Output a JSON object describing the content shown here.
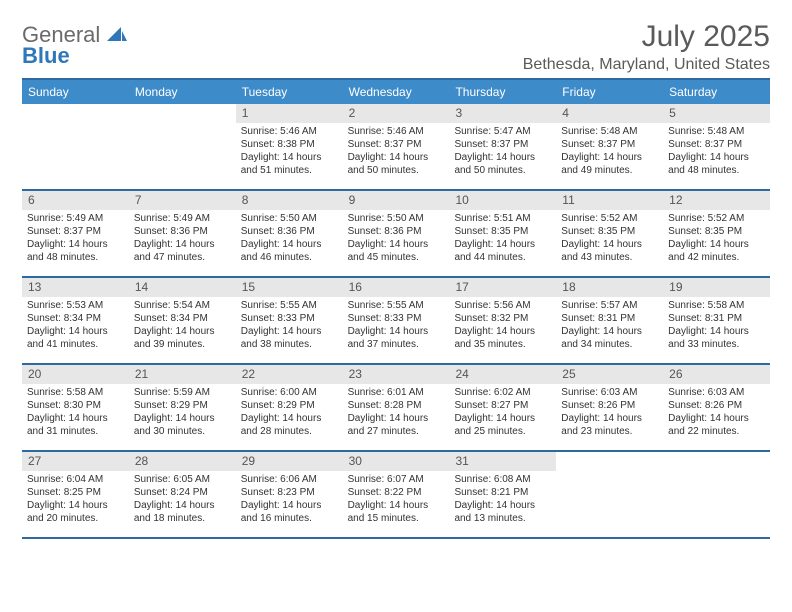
{
  "logo": {
    "line1": "General",
    "line2": "Blue",
    "brand_color": "#2e77b8",
    "gray_color": "#6a6a6a"
  },
  "header": {
    "month_title": "July 2025",
    "location": "Bethesda, Maryland, United States"
  },
  "colors": {
    "header_bg": "#3d8bc9",
    "header_border": "#2e6aa0",
    "daynum_bg": "#e7e7e7",
    "text": "#333333"
  },
  "day_names": [
    "Sunday",
    "Monday",
    "Tuesday",
    "Wednesday",
    "Thursday",
    "Friday",
    "Saturday"
  ],
  "weeks": [
    [
      {
        "num": "",
        "sunrise": "",
        "sunset": "",
        "daylight": ""
      },
      {
        "num": "",
        "sunrise": "",
        "sunset": "",
        "daylight": ""
      },
      {
        "num": "1",
        "sunrise": "Sunrise: 5:46 AM",
        "sunset": "Sunset: 8:38 PM",
        "daylight": "Daylight: 14 hours and 51 minutes."
      },
      {
        "num": "2",
        "sunrise": "Sunrise: 5:46 AM",
        "sunset": "Sunset: 8:37 PM",
        "daylight": "Daylight: 14 hours and 50 minutes."
      },
      {
        "num": "3",
        "sunrise": "Sunrise: 5:47 AM",
        "sunset": "Sunset: 8:37 PM",
        "daylight": "Daylight: 14 hours and 50 minutes."
      },
      {
        "num": "4",
        "sunrise": "Sunrise: 5:48 AM",
        "sunset": "Sunset: 8:37 PM",
        "daylight": "Daylight: 14 hours and 49 minutes."
      },
      {
        "num": "5",
        "sunrise": "Sunrise: 5:48 AM",
        "sunset": "Sunset: 8:37 PM",
        "daylight": "Daylight: 14 hours and 48 minutes."
      }
    ],
    [
      {
        "num": "6",
        "sunrise": "Sunrise: 5:49 AM",
        "sunset": "Sunset: 8:37 PM",
        "daylight": "Daylight: 14 hours and 48 minutes."
      },
      {
        "num": "7",
        "sunrise": "Sunrise: 5:49 AM",
        "sunset": "Sunset: 8:36 PM",
        "daylight": "Daylight: 14 hours and 47 minutes."
      },
      {
        "num": "8",
        "sunrise": "Sunrise: 5:50 AM",
        "sunset": "Sunset: 8:36 PM",
        "daylight": "Daylight: 14 hours and 46 minutes."
      },
      {
        "num": "9",
        "sunrise": "Sunrise: 5:50 AM",
        "sunset": "Sunset: 8:36 PM",
        "daylight": "Daylight: 14 hours and 45 minutes."
      },
      {
        "num": "10",
        "sunrise": "Sunrise: 5:51 AM",
        "sunset": "Sunset: 8:35 PM",
        "daylight": "Daylight: 14 hours and 44 minutes."
      },
      {
        "num": "11",
        "sunrise": "Sunrise: 5:52 AM",
        "sunset": "Sunset: 8:35 PM",
        "daylight": "Daylight: 14 hours and 43 minutes."
      },
      {
        "num": "12",
        "sunrise": "Sunrise: 5:52 AM",
        "sunset": "Sunset: 8:35 PM",
        "daylight": "Daylight: 14 hours and 42 minutes."
      }
    ],
    [
      {
        "num": "13",
        "sunrise": "Sunrise: 5:53 AM",
        "sunset": "Sunset: 8:34 PM",
        "daylight": "Daylight: 14 hours and 41 minutes."
      },
      {
        "num": "14",
        "sunrise": "Sunrise: 5:54 AM",
        "sunset": "Sunset: 8:34 PM",
        "daylight": "Daylight: 14 hours and 39 minutes."
      },
      {
        "num": "15",
        "sunrise": "Sunrise: 5:55 AM",
        "sunset": "Sunset: 8:33 PM",
        "daylight": "Daylight: 14 hours and 38 minutes."
      },
      {
        "num": "16",
        "sunrise": "Sunrise: 5:55 AM",
        "sunset": "Sunset: 8:33 PM",
        "daylight": "Daylight: 14 hours and 37 minutes."
      },
      {
        "num": "17",
        "sunrise": "Sunrise: 5:56 AM",
        "sunset": "Sunset: 8:32 PM",
        "daylight": "Daylight: 14 hours and 35 minutes."
      },
      {
        "num": "18",
        "sunrise": "Sunrise: 5:57 AM",
        "sunset": "Sunset: 8:31 PM",
        "daylight": "Daylight: 14 hours and 34 minutes."
      },
      {
        "num": "19",
        "sunrise": "Sunrise: 5:58 AM",
        "sunset": "Sunset: 8:31 PM",
        "daylight": "Daylight: 14 hours and 33 minutes."
      }
    ],
    [
      {
        "num": "20",
        "sunrise": "Sunrise: 5:58 AM",
        "sunset": "Sunset: 8:30 PM",
        "daylight": "Daylight: 14 hours and 31 minutes."
      },
      {
        "num": "21",
        "sunrise": "Sunrise: 5:59 AM",
        "sunset": "Sunset: 8:29 PM",
        "daylight": "Daylight: 14 hours and 30 minutes."
      },
      {
        "num": "22",
        "sunrise": "Sunrise: 6:00 AM",
        "sunset": "Sunset: 8:29 PM",
        "daylight": "Daylight: 14 hours and 28 minutes."
      },
      {
        "num": "23",
        "sunrise": "Sunrise: 6:01 AM",
        "sunset": "Sunset: 8:28 PM",
        "daylight": "Daylight: 14 hours and 27 minutes."
      },
      {
        "num": "24",
        "sunrise": "Sunrise: 6:02 AM",
        "sunset": "Sunset: 8:27 PM",
        "daylight": "Daylight: 14 hours and 25 minutes."
      },
      {
        "num": "25",
        "sunrise": "Sunrise: 6:03 AM",
        "sunset": "Sunset: 8:26 PM",
        "daylight": "Daylight: 14 hours and 23 minutes."
      },
      {
        "num": "26",
        "sunrise": "Sunrise: 6:03 AM",
        "sunset": "Sunset: 8:26 PM",
        "daylight": "Daylight: 14 hours and 22 minutes."
      }
    ],
    [
      {
        "num": "27",
        "sunrise": "Sunrise: 6:04 AM",
        "sunset": "Sunset: 8:25 PM",
        "daylight": "Daylight: 14 hours and 20 minutes."
      },
      {
        "num": "28",
        "sunrise": "Sunrise: 6:05 AM",
        "sunset": "Sunset: 8:24 PM",
        "daylight": "Daylight: 14 hours and 18 minutes."
      },
      {
        "num": "29",
        "sunrise": "Sunrise: 6:06 AM",
        "sunset": "Sunset: 8:23 PM",
        "daylight": "Daylight: 14 hours and 16 minutes."
      },
      {
        "num": "30",
        "sunrise": "Sunrise: 6:07 AM",
        "sunset": "Sunset: 8:22 PM",
        "daylight": "Daylight: 14 hours and 15 minutes."
      },
      {
        "num": "31",
        "sunrise": "Sunrise: 6:08 AM",
        "sunset": "Sunset: 8:21 PM",
        "daylight": "Daylight: 14 hours and 13 minutes."
      },
      {
        "num": "",
        "sunrise": "",
        "sunset": "",
        "daylight": ""
      },
      {
        "num": "",
        "sunrise": "",
        "sunset": "",
        "daylight": ""
      }
    ]
  ]
}
